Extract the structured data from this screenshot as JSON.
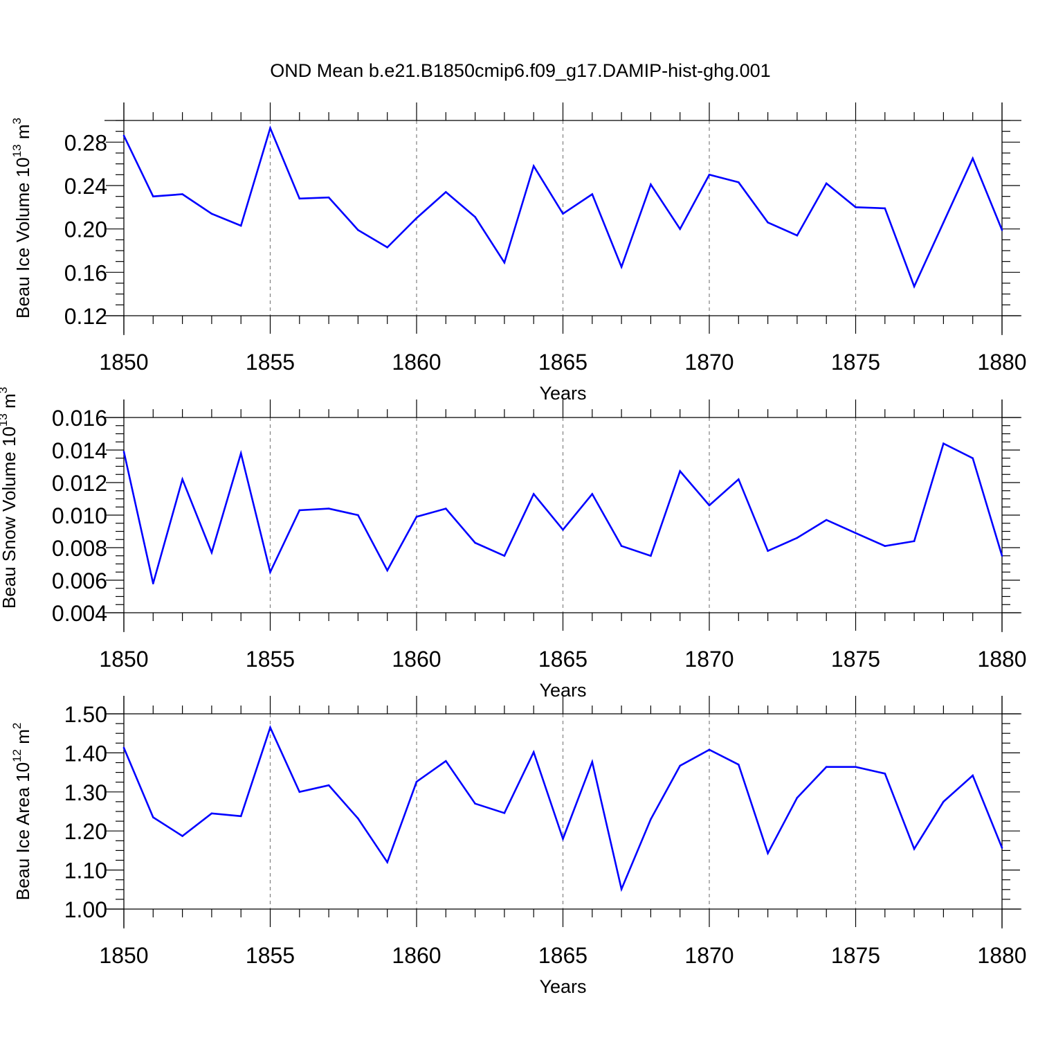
{
  "title": "OND Mean b.e21.B1850cmip6.f09_g17.DAMIP-hist-ghg.001",
  "colors": {
    "line": "#0000ff",
    "axis": "#000000",
    "grid": "#808080"
  },
  "chart_data": [
    {
      "type": "line",
      "xlabel": "Years",
      "ylabel": {
        "text": "Beau Ice Volume 10",
        "exp": "13",
        "unit": " m",
        "unit_exp": "3"
      },
      "xlim": [
        1850,
        1880
      ],
      "ylim": [
        0.12,
        0.3
      ],
      "x_ticks": [
        "1850",
        "1855",
        "1860",
        "1865",
        "1870",
        "1875",
        "1880"
      ],
      "y_ticks": [
        "0.12",
        "0.16",
        "0.20",
        "0.24",
        "0.28"
      ],
      "grid_x": [
        "1855",
        "1860",
        "1865",
        "1870",
        "1875"
      ],
      "x": [
        1850,
        1851,
        1852,
        1853,
        1854,
        1855,
        1856,
        1857,
        1858,
        1859,
        1860,
        1861,
        1862,
        1863,
        1864,
        1865,
        1866,
        1867,
        1868,
        1869,
        1870,
        1871,
        1872,
        1873,
        1874,
        1875,
        1876,
        1877,
        1878,
        1879,
        1880
      ],
      "values": [
        0.286,
        0.23,
        0.232,
        0.214,
        0.203,
        0.293,
        0.228,
        0.229,
        0.199,
        0.183,
        0.21,
        0.234,
        0.211,
        0.169,
        0.258,
        0.214,
        0.232,
        0.165,
        0.241,
        0.2,
        0.25,
        0.243,
        0.206,
        0.194,
        0.242,
        0.22,
        0.219,
        0.147,
        0.206,
        0.265,
        0.199
      ]
    },
    {
      "type": "line",
      "xlabel": "Years",
      "ylabel": {
        "text": "Beau Snow Volume 10",
        "exp": "13",
        "unit": " m",
        "unit_exp": "3"
      },
      "xlim": [
        1850,
        1880
      ],
      "ylim": [
        0.004,
        0.016
      ],
      "x_ticks": [
        "1850",
        "1855",
        "1860",
        "1865",
        "1870",
        "1875",
        "1880"
      ],
      "y_ticks": [
        "0.004",
        "0.006",
        "0.008",
        "0.010",
        "0.012",
        "0.014",
        "0.016"
      ],
      "grid_x": [
        "1855",
        "1860",
        "1865",
        "1870",
        "1875"
      ],
      "x": [
        1850,
        1851,
        1852,
        1853,
        1854,
        1855,
        1856,
        1857,
        1858,
        1859,
        1860,
        1861,
        1862,
        1863,
        1864,
        1865,
        1866,
        1867,
        1868,
        1869,
        1870,
        1871,
        1872,
        1873,
        1874,
        1875,
        1876,
        1877,
        1878,
        1879,
        1880
      ],
      "values": [
        0.0139,
        0.0058,
        0.0122,
        0.0077,
        0.0138,
        0.0065,
        0.0103,
        0.0104,
        0.01,
        0.0066,
        0.0099,
        0.0104,
        0.0083,
        0.0075,
        0.0113,
        0.0091,
        0.0113,
        0.0081,
        0.0075,
        0.0127,
        0.0106,
        0.0122,
        0.0078,
        0.0086,
        0.0097,
        0.0089,
        0.0081,
        0.0084,
        0.0144,
        0.0135,
        0.0075
      ]
    },
    {
      "type": "line",
      "xlabel": "Years",
      "ylabel": {
        "text": "Beau Ice Area 10",
        "exp": "12",
        "unit": " m",
        "unit_exp": "2"
      },
      "xlim": [
        1850,
        1880
      ],
      "ylim": [
        1.0,
        1.5
      ],
      "x_ticks": [
        "1850",
        "1855",
        "1860",
        "1865",
        "1870",
        "1875",
        "1880"
      ],
      "y_ticks": [
        "1.00",
        "1.10",
        "1.20",
        "1.30",
        "1.40",
        "1.50"
      ],
      "grid_x": [
        "1855",
        "1860",
        "1865",
        "1870",
        "1875"
      ],
      "x": [
        1850,
        1851,
        1852,
        1853,
        1854,
        1855,
        1856,
        1857,
        1858,
        1859,
        1860,
        1861,
        1862,
        1863,
        1864,
        1865,
        1866,
        1867,
        1868,
        1869,
        1870,
        1871,
        1872,
        1873,
        1874,
        1875,
        1876,
        1877,
        1878,
        1879,
        1880
      ],
      "values": [
        1.413,
        1.235,
        1.187,
        1.245,
        1.238,
        1.465,
        1.3,
        1.317,
        1.232,
        1.12,
        1.326,
        1.379,
        1.27,
        1.246,
        1.402,
        1.18,
        1.377,
        1.051,
        1.23,
        1.367,
        1.408,
        1.37,
        1.143,
        1.285,
        1.364,
        1.364,
        1.347,
        1.154,
        1.275,
        1.342,
        1.157
      ]
    }
  ]
}
